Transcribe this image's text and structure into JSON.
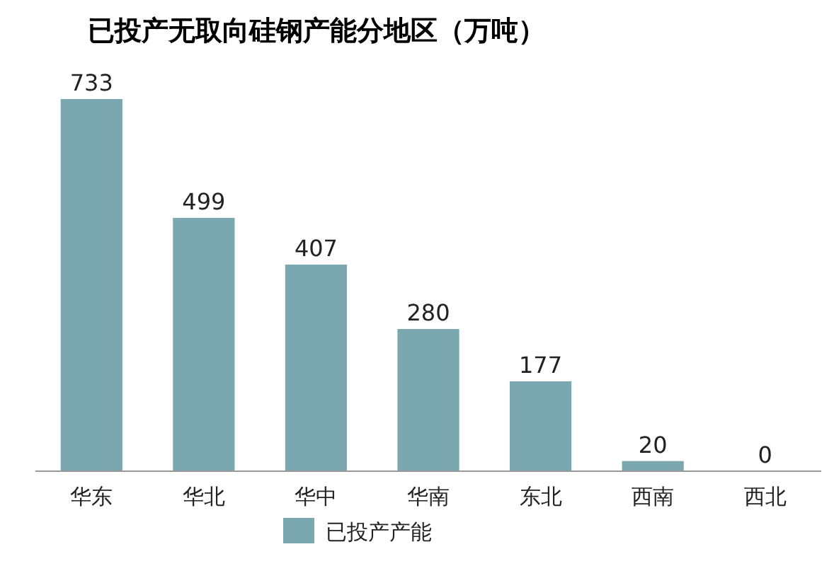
{
  "chart_data": {
    "type": "bar",
    "title": "已投产无取向硅钢产能分地区（万吨）",
    "categories": [
      "华东",
      "华北",
      "华中",
      "华南",
      "东北",
      "西南",
      "西北"
    ],
    "series": [
      {
        "name": "已投产产能",
        "color": "#7ba7b0",
        "values": [
          733,
          499,
          407,
          280,
          177,
          20,
          0
        ]
      }
    ],
    "data_labels": true,
    "legend": "bottom"
  }
}
